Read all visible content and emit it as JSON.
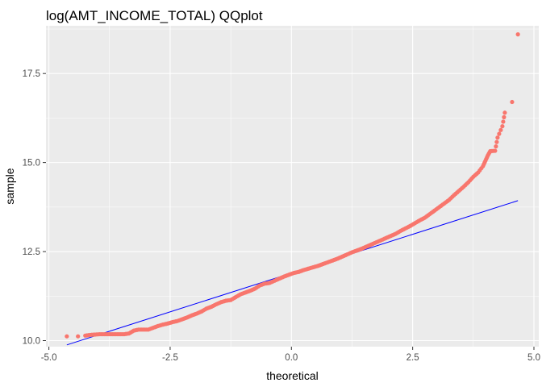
{
  "chart_data": {
    "type": "scatter",
    "title": "log(AMT_INCOME_TOTAL) QQplot",
    "xlabel": "theoretical",
    "ylabel": "sample",
    "xlim": [
      -5.06,
      5.1
    ],
    "ylim": [
      9.83,
      18.84
    ],
    "x_ticks": [
      -5.0,
      -2.5,
      0.0,
      2.5,
      5.0
    ],
    "x_tick_labels": [
      "-5.0",
      "-2.5",
      "0.0",
      "2.5",
      "5.0"
    ],
    "y_ticks": [
      10.0,
      12.5,
      15.0,
      17.5
    ],
    "y_tick_labels": [
      "10.0",
      "12.5",
      "15.0",
      "17.5"
    ],
    "grid": true,
    "background": "#EBEBEB",
    "point_color": "#F8766D",
    "line_color": "#0000FF",
    "reference_line": {
      "x": [
        -4.63,
        4.67
      ],
      "y": [
        9.88,
        13.93
      ]
    },
    "series": [
      {
        "values": [
          [
            -4.63,
            10.12
          ],
          [
            -4.4,
            10.12
          ],
          [
            -4.25,
            10.14
          ],
          [
            -4.15,
            10.16
          ],
          [
            -4.05,
            10.17
          ],
          [
            -3.95,
            10.18
          ],
          [
            -3.85,
            10.18
          ],
          [
            -3.75,
            10.18
          ],
          [
            -3.65,
            10.18
          ],
          [
            -3.55,
            10.18
          ],
          [
            -3.45,
            10.18
          ],
          [
            -3.35,
            10.2
          ],
          [
            -3.25,
            10.28
          ],
          [
            -3.15,
            10.31
          ],
          [
            -3.05,
            10.31
          ],
          [
            -2.95,
            10.31
          ],
          [
            -2.85,
            10.36
          ],
          [
            -2.75,
            10.41
          ],
          [
            -2.65,
            10.45
          ],
          [
            -2.55,
            10.48
          ],
          [
            -2.45,
            10.52
          ],
          [
            -2.35,
            10.55
          ],
          [
            -2.25,
            10.6
          ],
          [
            -2.15,
            10.65
          ],
          [
            -2.05,
            10.71
          ],
          [
            -1.95,
            10.76
          ],
          [
            -1.85,
            10.82
          ],
          [
            -1.75,
            10.9
          ],
          [
            -1.65,
            10.95
          ],
          [
            -1.55,
            11.02
          ],
          [
            -1.45,
            11.08
          ],
          [
            -1.35,
            11.12
          ],
          [
            -1.25,
            11.14
          ],
          [
            -1.15,
            11.22
          ],
          [
            -1.05,
            11.3
          ],
          [
            -0.95,
            11.35
          ],
          [
            -0.85,
            11.4
          ],
          [
            -0.75,
            11.46
          ],
          [
            -0.65,
            11.55
          ],
          [
            -0.55,
            11.6
          ],
          [
            -0.45,
            11.62
          ],
          [
            -0.35,
            11.68
          ],
          [
            -0.25,
            11.74
          ],
          [
            -0.15,
            11.8
          ],
          [
            -0.05,
            11.85
          ],
          [
            0.05,
            11.9
          ],
          [
            0.15,
            11.93
          ],
          [
            0.25,
            11.98
          ],
          [
            0.35,
            12.02
          ],
          [
            0.45,
            12.06
          ],
          [
            0.55,
            12.1
          ],
          [
            0.65,
            12.15
          ],
          [
            0.75,
            12.2
          ],
          [
            0.85,
            12.25
          ],
          [
            0.95,
            12.3
          ],
          [
            1.05,
            12.36
          ],
          [
            1.15,
            12.42
          ],
          [
            1.25,
            12.48
          ],
          [
            1.35,
            12.53
          ],
          [
            1.45,
            12.58
          ],
          [
            1.55,
            12.64
          ],
          [
            1.65,
            12.7
          ],
          [
            1.75,
            12.76
          ],
          [
            1.85,
            12.82
          ],
          [
            1.95,
            12.88
          ],
          [
            2.05,
            12.94
          ],
          [
            2.15,
            13.0
          ],
          [
            2.25,
            13.08
          ],
          [
            2.35,
            13.15
          ],
          [
            2.45,
            13.22
          ],
          [
            2.55,
            13.3
          ],
          [
            2.65,
            13.38
          ],
          [
            2.75,
            13.45
          ],
          [
            2.85,
            13.55
          ],
          [
            2.95,
            13.65
          ],
          [
            3.05,
            13.75
          ],
          [
            3.15,
            13.85
          ],
          [
            3.25,
            13.95
          ],
          [
            3.35,
            14.08
          ],
          [
            3.45,
            14.2
          ],
          [
            3.55,
            14.32
          ],
          [
            3.65,
            14.45
          ],
          [
            3.75,
            14.6
          ],
          [
            3.85,
            14.72
          ],
          [
            3.95,
            14.9
          ],
          [
            4.0,
            15.05
          ],
          [
            4.05,
            15.2
          ],
          [
            4.1,
            15.32
          ],
          [
            4.2,
            15.33
          ],
          [
            4.25,
            15.7
          ],
          [
            4.35,
            16.02
          ],
          [
            4.4,
            16.4
          ],
          [
            4.55,
            16.7
          ],
          [
            4.67,
            18.6
          ]
        ]
      }
    ]
  }
}
